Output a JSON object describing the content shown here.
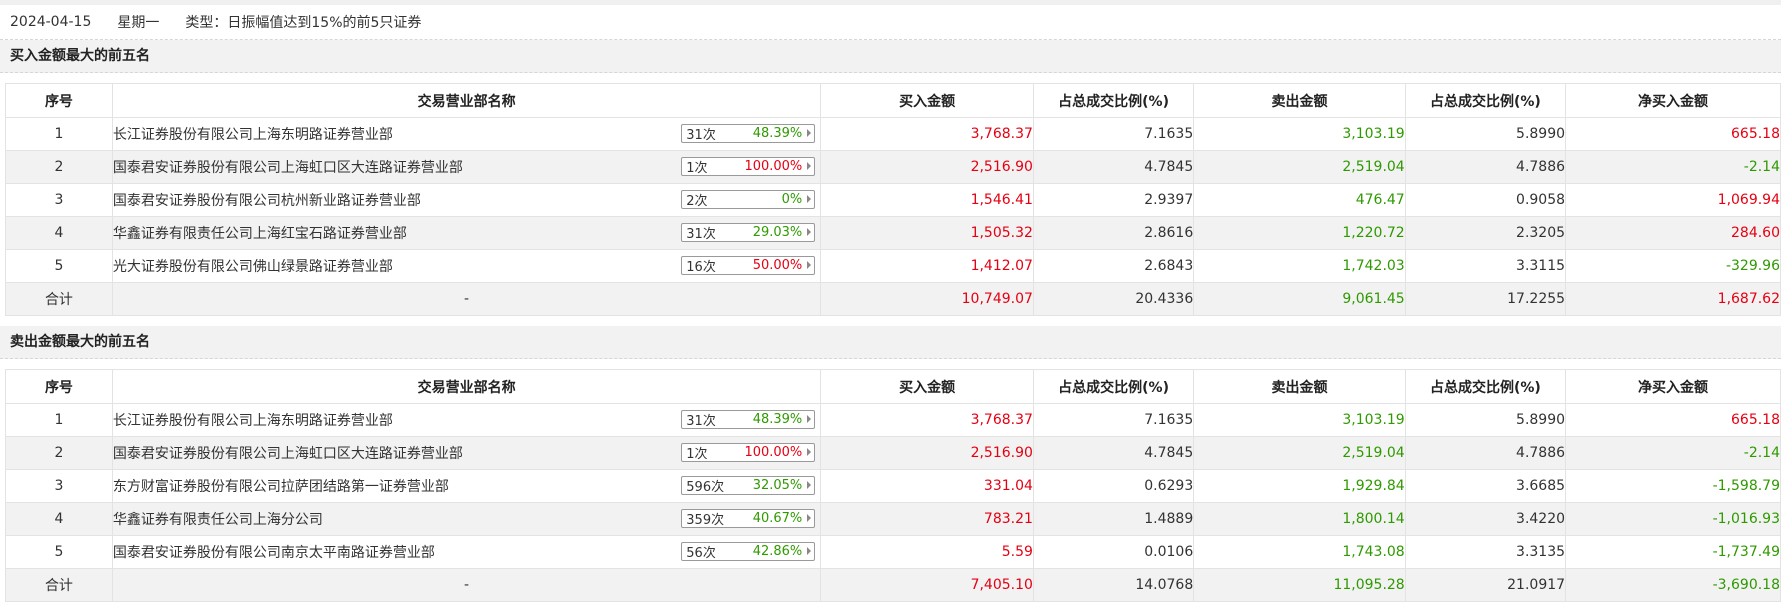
{
  "info": {
    "date": "2024-04-15",
    "weekday": "星期一",
    "type": "类型：日振幅值达到15%的前5只证券"
  },
  "columns": [
    "序号",
    "交易营业部名称",
    "买入金额",
    "占总成交比例(%)",
    "卖出金额",
    "占总成交比例(%)",
    "净买入金额"
  ],
  "colors": {
    "up": "#e60012",
    "down": "#2f9a00"
  },
  "buy": {
    "title": "买入金额最大的前五名",
    "rows": [
      {
        "idx": "1",
        "name": "长江证券股份有限公司上海东明路证券营业部",
        "count": "31次",
        "pct": "48.39%",
        "pct_color": "green",
        "buy": "3,768.37",
        "buy_ratio": "7.1635",
        "sell": "3,103.19",
        "sell_ratio": "5.8990",
        "net": "665.18",
        "net_color": "red"
      },
      {
        "idx": "2",
        "name": "国泰君安证券股份有限公司上海虹口区大连路证券营业部",
        "count": "1次",
        "pct": "100.00%",
        "pct_color": "red",
        "buy": "2,516.90",
        "buy_ratio": "4.7845",
        "sell": "2,519.04",
        "sell_ratio": "4.7886",
        "net": "-2.14",
        "net_color": "green"
      },
      {
        "idx": "3",
        "name": "国泰君安证券股份有限公司杭州新业路证券营业部",
        "count": "2次",
        "pct": "0%",
        "pct_color": "green",
        "buy": "1,546.41",
        "buy_ratio": "2.9397",
        "sell": "476.47",
        "sell_ratio": "0.9058",
        "net": "1,069.94",
        "net_color": "red"
      },
      {
        "idx": "4",
        "name": "华鑫证券有限责任公司上海红宝石路证券营业部",
        "count": "31次",
        "pct": "29.03%",
        "pct_color": "green",
        "buy": "1,505.32",
        "buy_ratio": "2.8616",
        "sell": "1,220.72",
        "sell_ratio": "2.3205",
        "net": "284.60",
        "net_color": "red"
      },
      {
        "idx": "5",
        "name": "光大证券股份有限公司佛山绿景路证券营业部",
        "count": "16次",
        "pct": "50.00%",
        "pct_color": "red",
        "buy": "1,412.07",
        "buy_ratio": "2.6843",
        "sell": "1,742.03",
        "sell_ratio": "3.3115",
        "net": "-329.96",
        "net_color": "green"
      }
    ],
    "total": {
      "label": "合计",
      "name": "-",
      "buy": "10,749.07",
      "buy_ratio": "20.4336",
      "sell": "9,061.45",
      "sell_ratio": "17.2255",
      "net": "1,687.62",
      "net_color": "red"
    }
  },
  "sell": {
    "title": "卖出金额最大的前五名",
    "rows": [
      {
        "idx": "1",
        "name": "长江证券股份有限公司上海东明路证券营业部",
        "count": "31次",
        "pct": "48.39%",
        "pct_color": "green",
        "buy": "3,768.37",
        "buy_ratio": "7.1635",
        "sell": "3,103.19",
        "sell_ratio": "5.8990",
        "net": "665.18",
        "net_color": "red"
      },
      {
        "idx": "2",
        "name": "国泰君安证券股份有限公司上海虹口区大连路证券营业部",
        "count": "1次",
        "pct": "100.00%",
        "pct_color": "red",
        "buy": "2,516.90",
        "buy_ratio": "4.7845",
        "sell": "2,519.04",
        "sell_ratio": "4.7886",
        "net": "-2.14",
        "net_color": "green"
      },
      {
        "idx": "3",
        "name": "东方财富证券股份有限公司拉萨团结路第一证券营业部",
        "count": "596次",
        "pct": "32.05%",
        "pct_color": "green",
        "buy": "331.04",
        "buy_ratio": "0.6293",
        "sell": "1,929.84",
        "sell_ratio": "3.6685",
        "net": "-1,598.79",
        "net_color": "green"
      },
      {
        "idx": "4",
        "name": "华鑫证券有限责任公司上海分公司",
        "count": "359次",
        "pct": "40.67%",
        "pct_color": "green",
        "buy": "783.21",
        "buy_ratio": "1.4889",
        "sell": "1,800.14",
        "sell_ratio": "3.4220",
        "net": "-1,016.93",
        "net_color": "green"
      },
      {
        "idx": "5",
        "name": "国泰君安证券股份有限公司南京太平南路证券营业部",
        "count": "56次",
        "pct": "42.86%",
        "pct_color": "green",
        "buy": "5.59",
        "buy_ratio": "0.0106",
        "sell": "1,743.08",
        "sell_ratio": "3.3135",
        "net": "-1,737.49",
        "net_color": "green"
      }
    ],
    "total": {
      "label": "合计",
      "name": "-",
      "buy": "7,405.10",
      "buy_ratio": "14.0768",
      "sell": "11,095.28",
      "sell_ratio": "21.0917",
      "net": "-3,690.18",
      "net_color": "green"
    }
  }
}
